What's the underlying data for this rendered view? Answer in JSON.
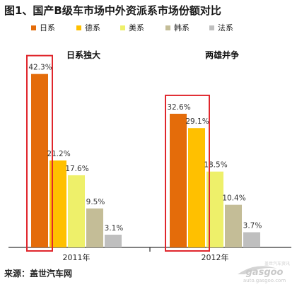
{
  "title": "图1、国产B级车市场中外资派系市场份额对比",
  "source": "来源：盖世汽车网",
  "watermark": {
    "brand": "gasgoo",
    "tagline": "盖世汽车资讯",
    "url": "auto.gasgoo.com"
  },
  "chart_data": {
    "type": "bar",
    "categories": [
      "2011年",
      "2012年"
    ],
    "series": [
      {
        "name": "日系",
        "color": "#E46C0A",
        "values": [
          42.3,
          32.6
        ]
      },
      {
        "name": "德系",
        "color": "#FFC000",
        "values": [
          21.2,
          29.1
        ]
      },
      {
        "name": "美系",
        "color": "#EEF06A",
        "values": [
          17.6,
          18.5
        ]
      },
      {
        "name": "韩系",
        "color": "#C4BD97",
        "values": [
          9.5,
          10.4
        ]
      },
      {
        "name": "法系",
        "color": "#BFBFBF",
        "values": [
          3.1,
          3.7
        ]
      }
    ],
    "value_labels": [
      [
        "42.3%",
        "21.2%",
        "17.6%",
        "9.5%",
        "3.1%"
      ],
      [
        "32.6%",
        "29.1%",
        "18.5%",
        "10.4%",
        "3.7%"
      ]
    ],
    "annotations": [
      "日系独大",
      "两雄并争"
    ],
    "highlight_color": "#E0262C",
    "legend_position": "top",
    "ylim": [
      0,
      50
    ],
    "grid": false
  }
}
